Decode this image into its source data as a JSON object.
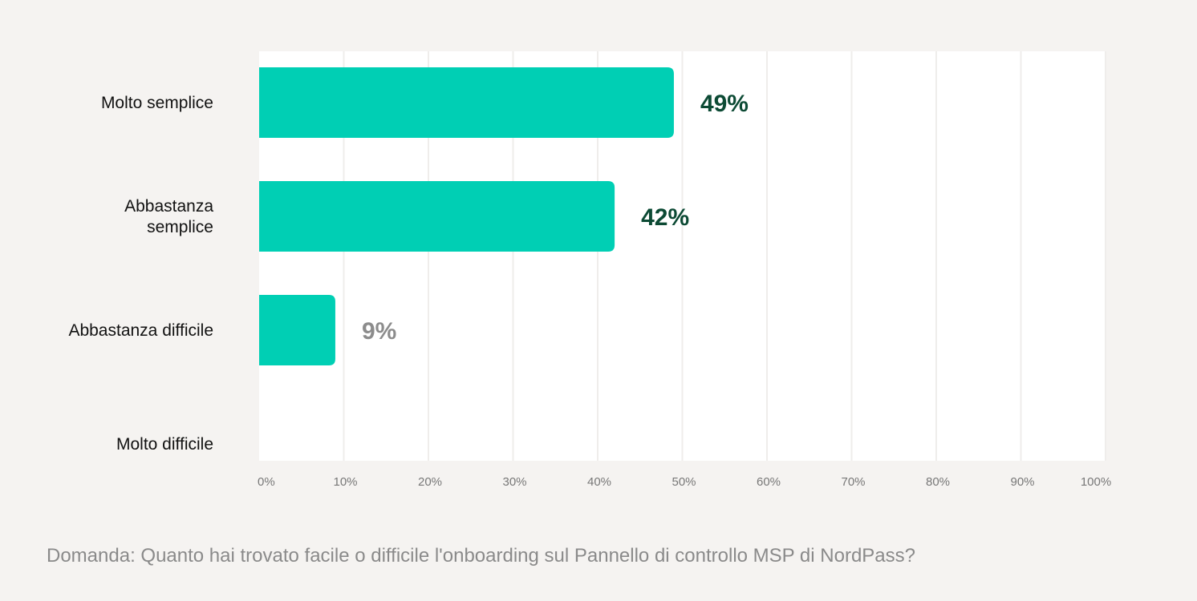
{
  "chart_data": {
    "type": "bar",
    "orientation": "horizontal",
    "categories": [
      [
        "Molto semplice"
      ],
      [
        "Abbastanza",
        "semplice"
      ],
      [
        "Abbastanza difficile"
      ],
      [
        "Molto difficile"
      ]
    ],
    "values": [
      49,
      42,
      9,
      0
    ],
    "data_labels": [
      "49%",
      "42%",
      "9%",
      ""
    ],
    "x_ticks": [
      "0%",
      "10%",
      "20%",
      "30%",
      "40%",
      "50%",
      "60%",
      "70%",
      "80%",
      "90%",
      "100%"
    ],
    "xlim": [
      0,
      100
    ],
    "grid": true,
    "legend": "none"
  },
  "colors": {
    "bar": "#00cfb4",
    "label_strong": "#0c4a34",
    "label_muted": "#8c8c8c",
    "grid": "#efedeb",
    "plot_bg": "#ffffff"
  },
  "footnote": "Domanda: Quanto hai trovato facile o difficile l'onboarding sul Pannello di controllo MSP di NordPass?"
}
